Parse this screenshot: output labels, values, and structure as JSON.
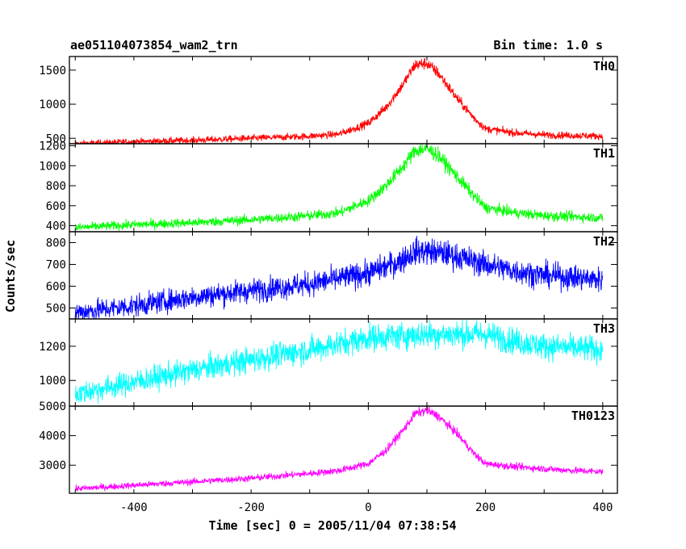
{
  "header": {
    "title": "ae051104073854_wam2_trn",
    "bin_time": "Bin time: 1.0 s"
  },
  "chart_data": {
    "type": "line",
    "xlabel": "Time [sec] 0 = 2005/11/04 07:38:54",
    "ylabel": "Counts/sec",
    "xlim": [
      -510,
      425
    ],
    "x_ticks": [
      -400,
      -200,
      0,
      200,
      400
    ],
    "panels": [
      {
        "name": "TH0",
        "color": "#ff0000",
        "ylim": [
          420,
          1700
        ],
        "y_ticks": [
          500,
          1000,
          1500
        ],
        "x": [
          -500,
          -400,
          -300,
          -200,
          -100,
          -50,
          0,
          30,
          60,
          80,
          100,
          120,
          150,
          180,
          200,
          250,
          300,
          350,
          400
        ],
        "values": [
          420,
          450,
          470,
          500,
          530,
          560,
          720,
          950,
          1300,
          1580,
          1600,
          1450,
          1100,
          800,
          640,
          580,
          550,
          540,
          530
        ]
      },
      {
        "name": "TH1",
        "color": "#00ff00",
        "ylim": [
          340,
          1220
        ],
        "y_ticks": [
          400,
          600,
          800,
          1000,
          1200
        ],
        "x": [
          -500,
          -400,
          -300,
          -200,
          -100,
          -50,
          0,
          30,
          60,
          80,
          100,
          120,
          150,
          180,
          200,
          250,
          300,
          350,
          400
        ],
        "values": [
          380,
          410,
          430,
          460,
          500,
          530,
          650,
          800,
          1000,
          1150,
          1170,
          1100,
          900,
          700,
          580,
          530,
          500,
          490,
          480
        ]
      },
      {
        "name": "TH2",
        "color": "#0000ff",
        "ylim": [
          450,
          850
        ],
        "y_ticks": [
          500,
          600,
          700,
          800
        ],
        "x": [
          -500,
          -400,
          -300,
          -200,
          -100,
          0,
          50,
          80,
          100,
          130,
          160,
          200,
          250,
          300,
          350,
          400
        ],
        "values": [
          480,
          510,
          550,
          580,
          610,
          660,
          710,
          760,
          760,
          750,
          730,
          700,
          670,
          650,
          640,
          630
        ]
      },
      {
        "name": "TH3",
        "color": "#00ffff",
        "ylim": [
          850,
          1360
        ],
        "y_ticks": [
          1000,
          1200
        ],
        "x": [
          -500,
          -400,
          -300,
          -200,
          -100,
          0,
          50,
          100,
          150,
          200,
          250,
          300,
          350,
          400
        ],
        "values": [
          920,
          990,
          1060,
          1120,
          1180,
          1250,
          1260,
          1270,
          1270,
          1270,
          1230,
          1200,
          1190,
          1180
        ]
      },
      {
        "name": "TH0123",
        "color": "#ff00ff",
        "ylim": [
          2050,
          5000
        ],
        "y_ticks": [
          3000,
          4000,
          5000
        ],
        "x": [
          -500,
          -400,
          -300,
          -200,
          -100,
          -50,
          0,
          30,
          60,
          80,
          100,
          120,
          150,
          180,
          200,
          250,
          300,
          350,
          400
        ],
        "values": [
          2200,
          2320,
          2440,
          2560,
          2720,
          2820,
          3050,
          3500,
          4200,
          4750,
          4850,
          4650,
          4100,
          3400,
          3050,
          2950,
          2880,
          2820,
          2780
        ]
      }
    ]
  }
}
